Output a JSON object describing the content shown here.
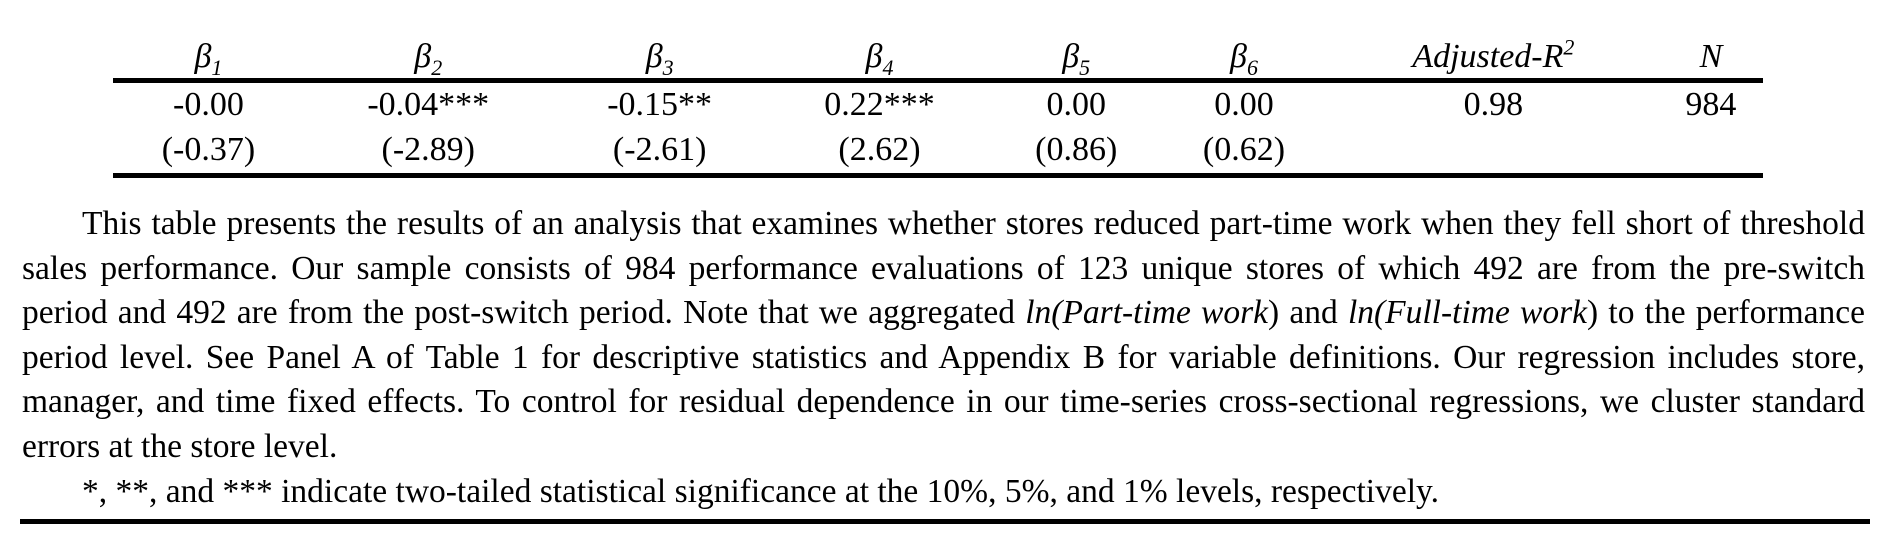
{
  "table": {
    "headers": [
      {
        "base": "β",
        "sub": "1",
        "sup": ""
      },
      {
        "base": "β",
        "sub": "2",
        "sup": ""
      },
      {
        "base": "β",
        "sub": "3",
        "sup": ""
      },
      {
        "base": "β",
        "sub": "4",
        "sup": ""
      },
      {
        "base": "β",
        "sub": "5",
        "sup": ""
      },
      {
        "base": "β",
        "sub": "6",
        "sup": ""
      },
      {
        "base": "Adjusted-R",
        "sub": "",
        "sup": "2"
      },
      {
        "base": "N",
        "sub": "",
        "sup": ""
      }
    ],
    "coefficients": [
      "-0.00",
      "-0.04***",
      "-0.15**",
      "0.22***",
      "0.00",
      "0.00",
      "0.98",
      "984"
    ],
    "tstats": [
      "(-0.37)",
      "(-2.89)",
      "(-2.61)",
      "(2.62)",
      "(0.86)",
      "(0.62)",
      "",
      ""
    ]
  },
  "note": {
    "p1_text1": "This table presents the results of an analysis that examines whether stores reduced part-time work when they fell short of threshold sales performance. Our sample consists of 984 performance evaluations of 123 unique stores of which 492 are from the pre-switch period and 492 are from the post-switch period. Note that we aggregated ",
    "p1_italic1": "ln(Part-time work",
    "p1_text2": ") and ",
    "p1_italic2": "ln(Full-time work",
    "p1_text3": ") to the performance period level. See Panel A of Table 1 for descriptive statistics and Appendix B for variable definitions. Our regression includes store, manager, and time fixed effects. To control for residual dependence in our time-series cross-sectional regressions, we cluster standard errors at the store level.",
    "p2_text": "*, **, and *** indicate two-tailed statistical significance at the 10%, 5%, and 1% levels, respectively."
  }
}
